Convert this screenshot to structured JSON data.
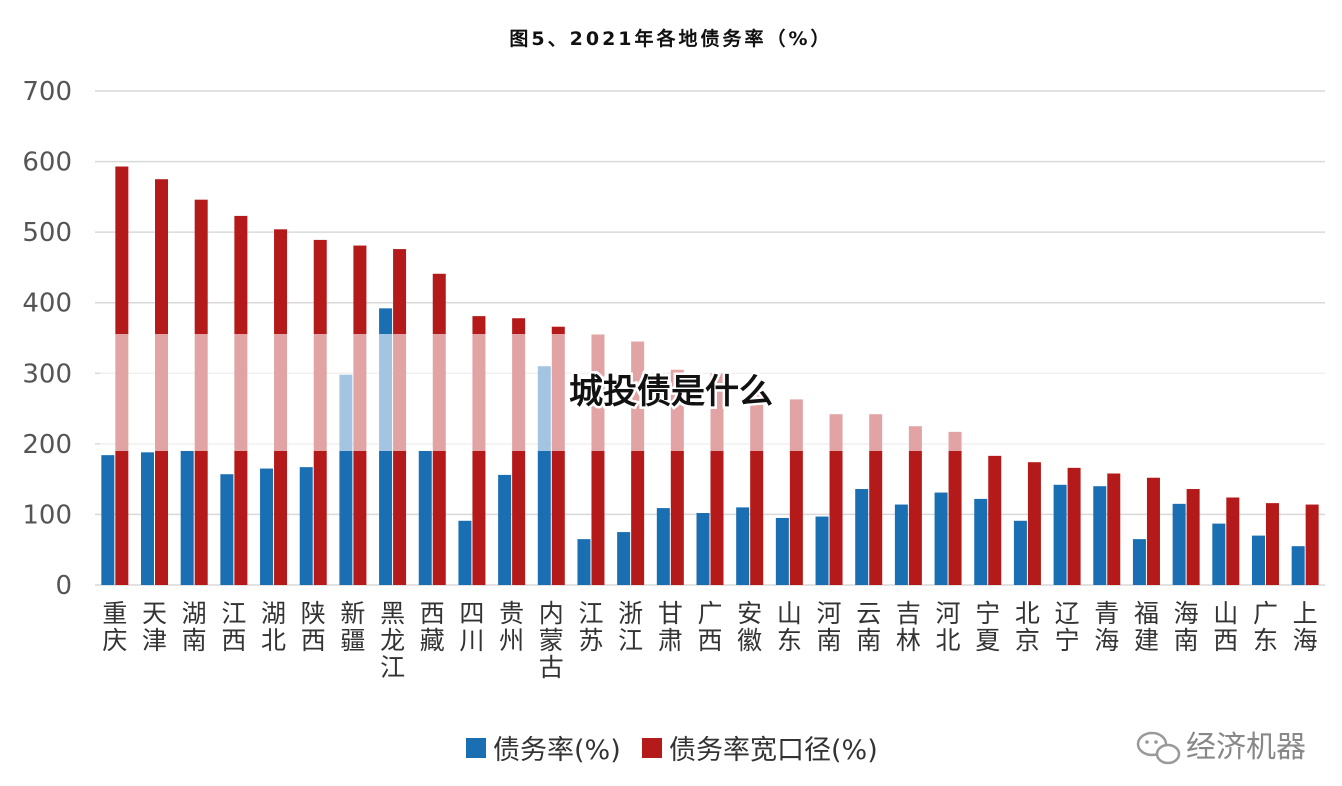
{
  "chart_data": {
    "type": "bar",
    "title": "图5、2021年各地债务率（%）",
    "categories": [
      "重庆",
      "天津",
      "湖南",
      "江西",
      "湖北",
      "陕西",
      "新疆",
      "黑龙江",
      "西藏",
      "四川",
      "贵州",
      "内蒙古",
      "江苏",
      "浙江",
      "甘肃",
      "广西",
      "安徽",
      "山东",
      "河南",
      "云南",
      "吉林",
      "河北",
      "宁夏",
      "北京",
      "辽宁",
      "青海",
      "福建",
      "海南",
      "山西",
      "广东",
      "上海"
    ],
    "series": [
      {
        "name": "债务率(%)",
        "color": "#1a6fb3",
        "values": [
          184,
          188,
          190,
          157,
          165,
          167,
          298,
          392,
          190,
          91,
          156,
          310,
          65,
          75,
          109,
          102,
          110,
          95,
          97,
          136,
          114,
          131,
          122,
          91,
          142,
          140,
          65,
          115,
          87,
          70,
          55
        ]
      },
      {
        "name": "债务率宽口径(%)",
        "color": "#b51a1a",
        "values": [
          593,
          575,
          546,
          523,
          504,
          489,
          481,
          476,
          441,
          381,
          378,
          366,
          355,
          345,
          305,
          300,
          273,
          263,
          242,
          242,
          225,
          217,
          183,
          174,
          166,
          158,
          152,
          136,
          124,
          116,
          114
        ]
      }
    ],
    "ylim": [
      0,
      700
    ],
    "yticks": [
      "0",
      "100",
      "200",
      "300",
      "400",
      "500",
      "600",
      "700"
    ],
    "grid": true,
    "legend": "bottom-center"
  },
  "overlay": {
    "text": "城投债是什么"
  },
  "watermark": {
    "text": "经济机器",
    "icon": "wechat-icon"
  }
}
